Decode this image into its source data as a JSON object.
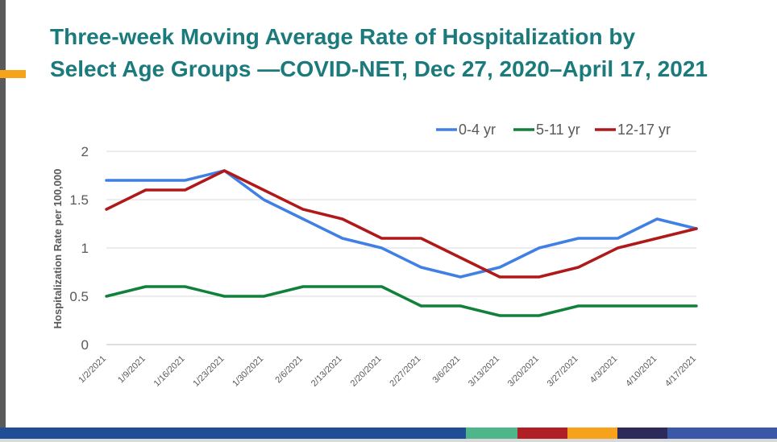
{
  "slide": {
    "title_line1": "Three-week Moving Average Rate of Hospitalization by",
    "title_line2": "Select Age Groups —COVID-NET, Dec 27, 2020–April 17, 2021",
    "title_color": "#1b7a7b",
    "accent_color": "#f6a21b",
    "bottom_stripe_colors": [
      "#1f4e96",
      "#1f4e96",
      "#4fb68c",
      "#b01f24",
      "#f6a21b",
      "#2d2a5b",
      "#3a58a8"
    ]
  },
  "chart_data": {
    "type": "line",
    "title": "",
    "xlabel": "",
    "ylabel": "Hospitalization Rate per 100,000",
    "categories": [
      "1/2/2021",
      "1/9/2021",
      "1/16/2021",
      "1/23/2021",
      "1/30/2021",
      "2/6/2021",
      "2/13/2021",
      "2/20/2021",
      "2/27/2021",
      "3/6/2021",
      "3/13/2021",
      "3/20/2021",
      "3/27/2021",
      "4/3/2021",
      "4/10/2021",
      "4/17/2021"
    ],
    "ylim": [
      0,
      2
    ],
    "yticks": [
      "0",
      "0.5",
      "1",
      "1.5",
      "2"
    ],
    "grid": true,
    "legend_position": "top-right",
    "series": [
      {
        "name": "0-4 yr",
        "color": "#3f7fe6",
        "values": [
          1.7,
          1.7,
          1.7,
          1.8,
          1.5,
          1.3,
          1.1,
          1.0,
          0.8,
          0.7,
          0.8,
          1.0,
          1.1,
          1.1,
          1.3,
          1.2
        ]
      },
      {
        "name": "5-11 yr",
        "color": "#11813a",
        "values": [
          0.5,
          0.6,
          0.6,
          0.5,
          0.5,
          0.6,
          0.6,
          0.6,
          0.4,
          0.4,
          0.3,
          0.3,
          0.4,
          0.4,
          0.4,
          0.4
        ]
      },
      {
        "name": "12-17 yr",
        "color": "#b01919",
        "values": [
          1.4,
          1.6,
          1.6,
          1.8,
          1.6,
          1.4,
          1.3,
          1.1,
          1.1,
          0.9,
          0.7,
          0.7,
          0.8,
          1.0,
          1.1,
          1.2
        ]
      }
    ]
  }
}
